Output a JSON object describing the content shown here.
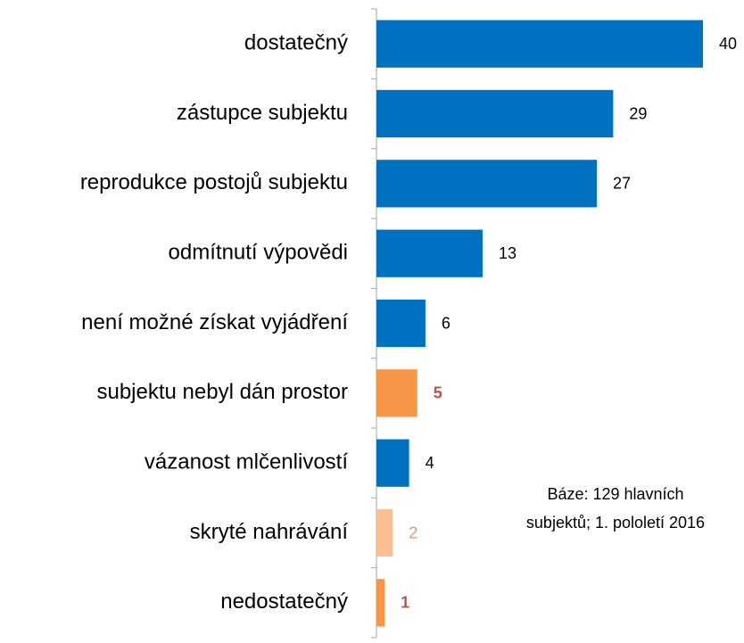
{
  "chart_data": {
    "type": "bar",
    "orientation": "horizontal",
    "categories": [
      "dostatečný",
      "zástupce subjektu",
      "reprodukce postojů subjektu",
      "odmítnutí výpovědi",
      "není možné získat vyjádření",
      "subjektu nebyl dán prostor",
      "vázanost mlčenlivostí",
      "skryté nahrávání",
      "nedostatečný"
    ],
    "values": [
      40,
      29,
      27,
      13,
      6,
      5,
      4,
      2,
      1
    ],
    "colors": [
      "#0070c0",
      "#0070c0",
      "#0070c0",
      "#0070c0",
      "#0070c0",
      "#f79646",
      "#0070c0",
      "#fac090",
      "#f79646"
    ],
    "label_colors": [
      "#000000",
      "#000000",
      "#000000",
      "#000000",
      "#000000",
      "#c0504d",
      "#000000",
      "#e8967a",
      "#c0504d"
    ],
    "xlim": [
      0,
      40
    ],
    "annotation": [
      "Báze: 129 hlavních",
      "subjektů; 1. pololetí 2016"
    ]
  }
}
